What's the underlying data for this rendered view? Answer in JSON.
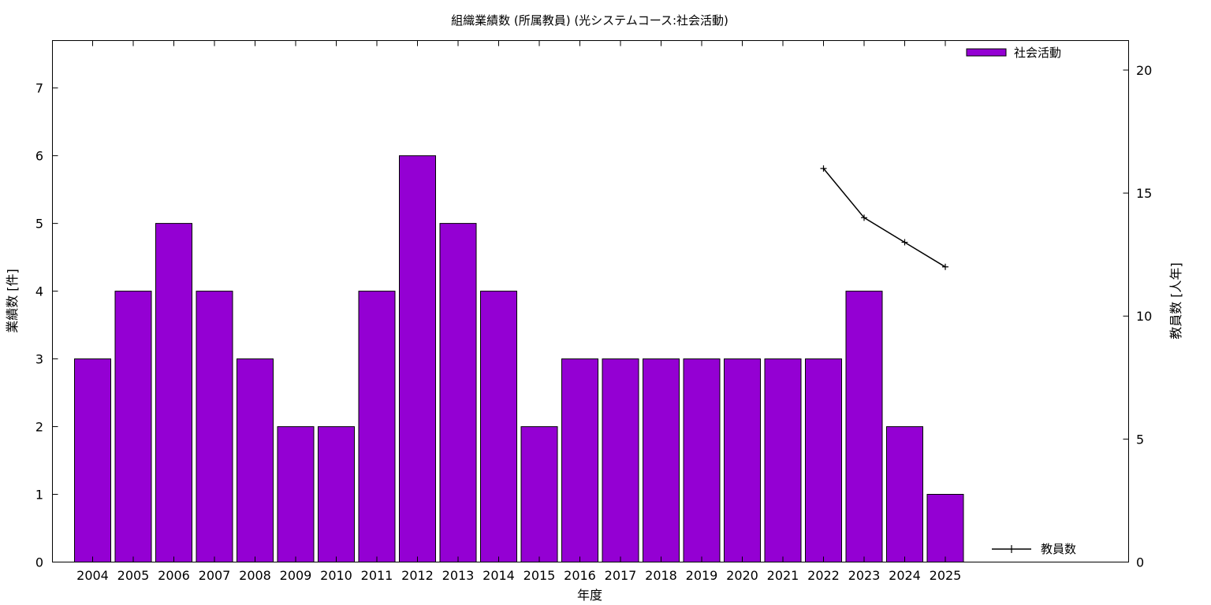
{
  "chart_data": {
    "type": "bar",
    "title": "組織業績数 (所属教員) (光システムコース:社会活動)",
    "xlabel": "年度",
    "ylabel": "業績数 [件]",
    "y2label": "教員数 [人年]",
    "categories": [
      "2004",
      "2005",
      "2006",
      "2007",
      "2008",
      "2009",
      "2010",
      "2011",
      "2012",
      "2013",
      "2014",
      "2015",
      "2016",
      "2017",
      "2018",
      "2019",
      "2020",
      "2021",
      "2022",
      "2023",
      "2024",
      "2025"
    ],
    "ylim": [
      0,
      7.7
    ],
    "yticks": [
      0,
      1,
      2,
      3,
      4,
      5,
      6,
      7
    ],
    "y2lim": [
      0,
      21.2
    ],
    "y2ticks": [
      0,
      5,
      10,
      15,
      20
    ],
    "grid": false,
    "series": [
      {
        "name": "社会活動",
        "type": "bar",
        "axis": "left",
        "color": "#9400d3",
        "values": [
          3,
          4,
          5,
          4,
          3,
          2,
          2,
          4,
          6,
          5,
          4,
          2,
          3,
          3,
          3,
          3,
          3,
          3,
          3,
          4,
          2,
          1
        ]
      },
      {
        "name": "教員数",
        "type": "line",
        "axis": "right",
        "color": "#000000",
        "x": [
          "2022",
          "2023",
          "2024",
          "2025"
        ],
        "values": [
          16,
          14,
          13,
          12
        ]
      }
    ],
    "legend": {
      "bar_position": "top-right",
      "line_position": "bottom-right"
    }
  }
}
